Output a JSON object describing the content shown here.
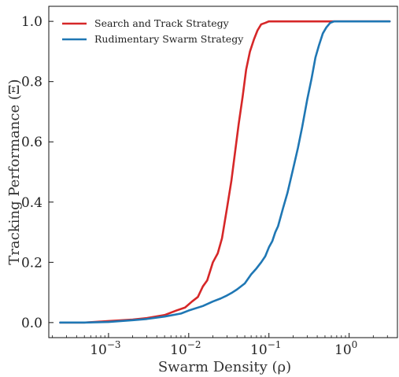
{
  "chart_data": {
    "type": "line",
    "xlabel": "Swarm Density (ρ)",
    "ylabel": "Tracking Performance (Ξ)",
    "xscale": "log",
    "xlim": [
      0.00018,
      4.0
    ],
    "ylim": [
      -0.05,
      1.05
    ],
    "grid": false,
    "legend_position": "top-left",
    "x_ticks": [
      {
        "value": 0.001,
        "base": "10",
        "exp": "−3"
      },
      {
        "value": 0.01,
        "base": "10",
        "exp": "−2"
      },
      {
        "value": 0.1,
        "base": "10",
        "exp": "−1"
      },
      {
        "value": 1,
        "base": "10",
        "exp": "0"
      }
    ],
    "y_ticks": [
      {
        "value": 0.0,
        "label": "0.0"
      },
      {
        "value": 0.2,
        "label": "0.2"
      },
      {
        "value": 0.4,
        "label": "0.4"
      },
      {
        "value": 0.6,
        "label": "0.6"
      },
      {
        "value": 0.8,
        "label": "0.8"
      },
      {
        "value": 1.0,
        "label": "1.0"
      }
    ],
    "series": [
      {
        "name": "Search and Track Strategy",
        "color": "#d62728",
        "x": [
          0.00025,
          0.0005,
          0.001,
          0.002,
          0.003,
          0.005,
          0.007,
          0.009,
          0.011,
          0.013,
          0.015,
          0.017,
          0.02,
          0.023,
          0.026,
          0.03,
          0.034,
          0.038,
          0.042,
          0.047,
          0.052,
          0.058,
          0.065,
          0.072,
          0.08,
          0.09,
          0.1,
          0.12,
          0.15,
          0.2,
          0.3,
          0.5,
          1.0,
          2.0,
          3.2
        ],
        "y": [
          0.0,
          0.0,
          0.005,
          0.01,
          0.015,
          0.025,
          0.04,
          0.05,
          0.07,
          0.085,
          0.12,
          0.14,
          0.2,
          0.23,
          0.28,
          0.38,
          0.47,
          0.57,
          0.66,
          0.75,
          0.84,
          0.9,
          0.94,
          0.97,
          0.99,
          0.995,
          1.0,
          1.0,
          1.0,
          1.0,
          1.0,
          1.0,
          1.0,
          1.0,
          1.0
        ]
      },
      {
        "name": "Rudimentary Swarm Strategy",
        "color": "#1f77b4",
        "x": [
          0.00025,
          0.0005,
          0.001,
          0.002,
          0.003,
          0.005,
          0.008,
          0.01,
          0.015,
          0.02,
          0.025,
          0.03,
          0.035,
          0.04,
          0.05,
          0.06,
          0.07,
          0.08,
          0.09,
          0.1,
          0.11,
          0.12,
          0.13,
          0.15,
          0.17,
          0.2,
          0.23,
          0.26,
          0.3,
          0.34,
          0.38,
          0.42,
          0.47,
          0.52,
          0.58,
          0.65,
          0.75,
          1.0,
          1.5,
          2.0,
          3.2
        ],
        "y": [
          0.0,
          0.0,
          0.002,
          0.008,
          0.012,
          0.02,
          0.03,
          0.04,
          0.055,
          0.07,
          0.08,
          0.09,
          0.1,
          0.11,
          0.13,
          0.16,
          0.18,
          0.2,
          0.22,
          0.25,
          0.27,
          0.3,
          0.32,
          0.38,
          0.43,
          0.51,
          0.58,
          0.65,
          0.74,
          0.81,
          0.88,
          0.92,
          0.96,
          0.98,
          0.995,
          1.0,
          1.0,
          1.0,
          1.0,
          1.0,
          1.0
        ]
      }
    ]
  }
}
